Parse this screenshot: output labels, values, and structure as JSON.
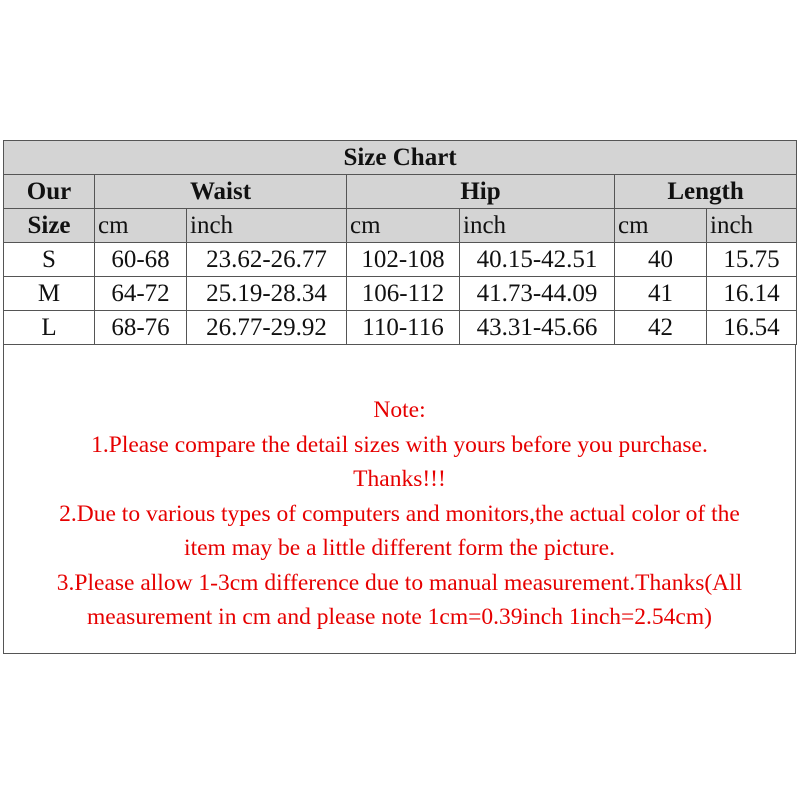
{
  "title": "Size Chart",
  "header": {
    "size": [
      "Our",
      "Size"
    ],
    "groups": [
      "Waist",
      "Hip",
      "Length"
    ],
    "units": [
      "cm",
      "inch",
      "cm",
      "inch",
      "cm",
      "inch"
    ]
  },
  "rows": [
    [
      "S",
      "60-68",
      "23.62-26.77",
      "102-108",
      "40.15-42.51",
      "40",
      "15.75"
    ],
    [
      "M",
      "64-72",
      "25.19-28.34",
      "106-112",
      "41.73-44.09",
      "41",
      "16.14"
    ],
    [
      "L",
      "68-76",
      "26.77-29.92",
      "110-116",
      "43.31-45.66",
      "42",
      "16.54"
    ]
  ],
  "note": [
    "Note:",
    "1.Please compare the detail sizes with yours before you purchase.",
    "Thanks!!!",
    "2.Due to various types of computers and monitors,the actual color of the",
    "item may be a little different form the picture.",
    "3.Please allow 1-3cm difference due to manual measurement.Thanks(All",
    "measurement in cm and please note 1cm=0.39inch 1inch=2.54cm)"
  ],
  "colors": {
    "header_bg": "#d4d4d4",
    "note_text": "#e60000"
  }
}
